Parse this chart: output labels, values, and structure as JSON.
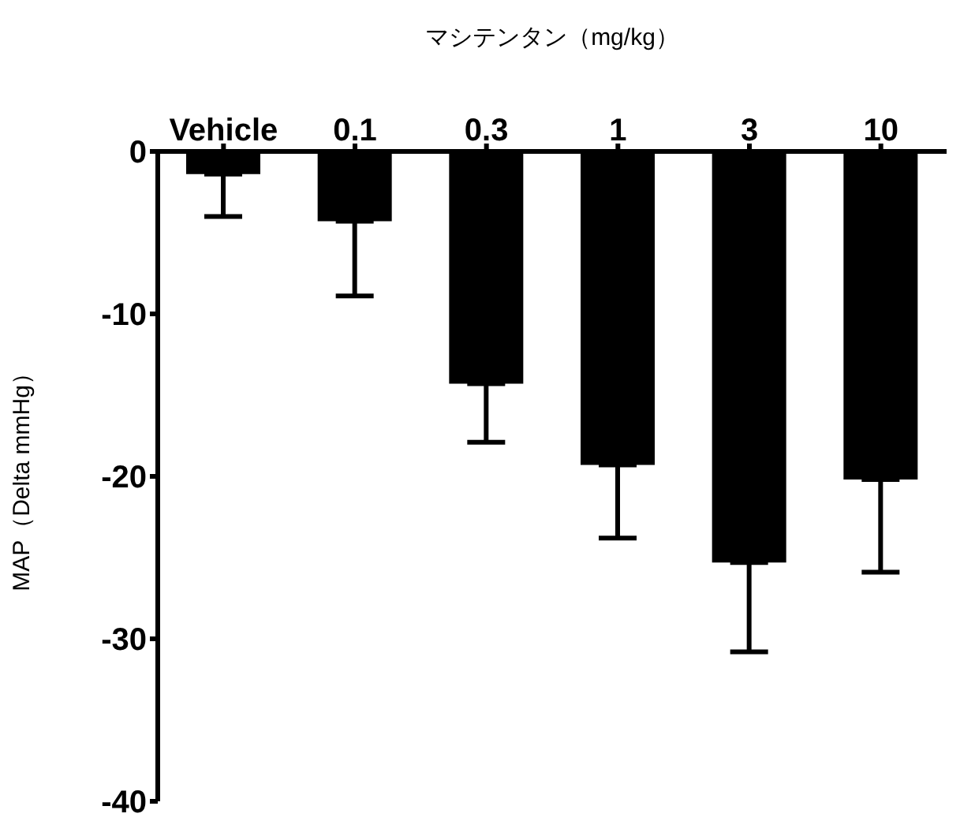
{
  "chart_data": {
    "type": "bar",
    "xlabel": "マシテンタン（mg/kg）",
    "ylabel": "MAP（Delta mmHg）",
    "categories": [
      "Vehicle",
      "0.1",
      "0.3",
      "1",
      "3",
      "10"
    ],
    "values": [
      -1.4,
      -4.3,
      -14.3,
      -19.3,
      -25.3,
      -20.2
    ],
    "errors": [
      [
        -4.0,
        -1.4
      ],
      [
        -8.9,
        -4.3
      ],
      [
        -17.9,
        -14.3
      ],
      [
        -23.8,
        -19.3
      ],
      [
        -30.8,
        -25.3
      ],
      [
        -25.9,
        -20.2
      ]
    ],
    "color": "#000000",
    "ylim": [
      -40,
      0
    ],
    "yticks": [
      -40,
      -30,
      -20,
      -10,
      0
    ],
    "grid": false,
    "legend": false
  }
}
